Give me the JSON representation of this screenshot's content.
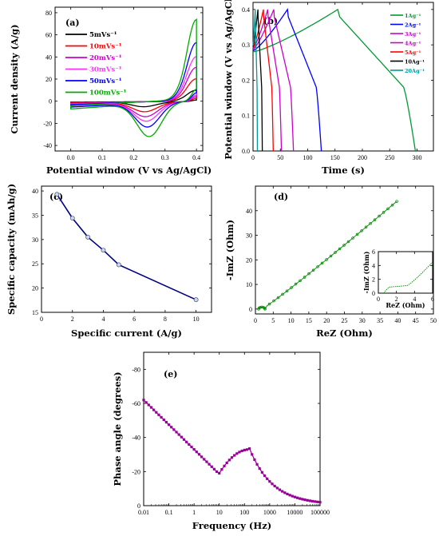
{
  "chart_data": [
    {
      "panel": "(a)",
      "type": "line",
      "xlabel": "Potential window (V vs Ag/AgCl)",
      "ylabel": "Current density (A/g)",
      "xlim": [
        -0.05,
        0.42
      ],
      "ylim": [
        -45,
        85
      ],
      "xticks": [
        "0.0",
        "0.1",
        "0.2",
        "0.3",
        "0.4"
      ],
      "yticks": [
        "-40",
        "-20",
        "0",
        "20",
        "40",
        "60",
        "80"
      ],
      "series": [
        {
          "name": "5mVs⁻¹",
          "color": "#000000",
          "scale": 0.14
        },
        {
          "name": "10mVs⁻¹",
          "color": "#ff0000",
          "scale": 0.28
        },
        {
          "name": "20mVs⁻¹",
          "color": "#cc00cc",
          "scale": 0.42
        },
        {
          "name": "30mVs⁻¹",
          "color": "#ff33ff",
          "scale": 0.55
        },
        {
          "name": "50mVs⁻¹",
          "color": "#0000ff",
          "scale": 0.72
        },
        {
          "name": "100mVs⁻¹",
          "color": "#00aa00",
          "scale": 1.0
        }
      ],
      "legend": "top-left"
    },
    {
      "panel": "(b)",
      "type": "line",
      "xlabel": "Time (s)",
      "ylabel": "Potential window (V vs Ag/AgCl)",
      "xlim": [
        0,
        330
      ],
      "ylim": [
        0,
        0.42
      ],
      "xticks": [
        "0",
        "50",
        "100",
        "150",
        "200",
        "250",
        "300"
      ],
      "yticks": [
        "0.0",
        "0.1",
        "0.2",
        "0.3",
        "0.4"
      ],
      "series": [
        {
          "name": "1Ag⁻¹",
          "color": "#009933",
          "charge_time": 155,
          "discharge_end": 297
        },
        {
          "name": "2Ag⁻¹",
          "color": "#0000ff",
          "charge_time": 63,
          "discharge_end": 125
        },
        {
          "name": "3Ag⁻¹",
          "color": "#cc00cc",
          "charge_time": 38,
          "discharge_end": 74
        },
        {
          "name": "4Ag⁻¹",
          "color": "#cc00cc",
          "charge_time": 27,
          "discharge_end": 52
        },
        {
          "name": "5Ag⁻¹",
          "color": "#ff0000",
          "charge_time": 19,
          "discharge_end": 37
        },
        {
          "name": "10Ag⁻¹",
          "color": "#000000",
          "charge_time": 9,
          "discharge_end": 17
        },
        {
          "name": "20Ag⁻¹",
          "color": "#009999",
          "charge_time": 4,
          "discharge_end": 8
        }
      ],
      "legend": "top-right"
    },
    {
      "panel": "(c)",
      "type": "line",
      "xlabel": "Specific current (A/g)",
      "ylabel": "Specific capacity (mAh/g)",
      "xlim": [
        0,
        11
      ],
      "ylim": [
        15,
        41
      ],
      "xticks": [
        "0",
        "2",
        "4",
        "6",
        "8",
        "10"
      ],
      "yticks": [
        "15",
        "20",
        "25",
        "30",
        "35",
        "40"
      ],
      "x": [
        1,
        2,
        3,
        4,
        5,
        10
      ],
      "y": [
        39.3,
        34.4,
        30.5,
        27.8,
        24.8,
        17.6
      ],
      "color": "#000080"
    },
    {
      "panel": "(d)",
      "type": "scatter",
      "xlabel": "ReZ (Ohm)",
      "ylabel": "-ImZ (Ohm)",
      "xlim": [
        0,
        50
      ],
      "ylim": [
        -2,
        50
      ],
      "xticks": [
        "0",
        "5",
        "10",
        "15",
        "20",
        "25",
        "30",
        "35",
        "40",
        "45",
        "50"
      ],
      "yticks": [
        "0",
        "10",
        "20",
        "30",
        "40"
      ],
      "color": "#008800",
      "inset": {
        "xlabel": "ReZ (Ohm)",
        "ylabel": "-ImZ (Ohm)",
        "xlim": [
          0,
          6
        ],
        "ylim": [
          0,
          6
        ],
        "xticks": [
          "0",
          "2",
          "4",
          "6"
        ],
        "yticks": [
          "0",
          "2",
          "4",
          "6"
        ]
      }
    },
    {
      "panel": "(e)",
      "type": "line",
      "xlabel": "Frequency (Hz)",
      "ylabel": "Phase angle (degrees)",
      "xscale": "log",
      "xlim": [
        0.01,
        100000
      ],
      "ylim": [
        0,
        -90
      ],
      "xticks": [
        "0.01",
        "0.1",
        "1",
        "10",
        "100",
        "1000",
        "10000",
        "100000"
      ],
      "yticks": [
        "0",
        "-20",
        "-40",
        "-60",
        "-80"
      ],
      "color": "#990099"
    }
  ]
}
